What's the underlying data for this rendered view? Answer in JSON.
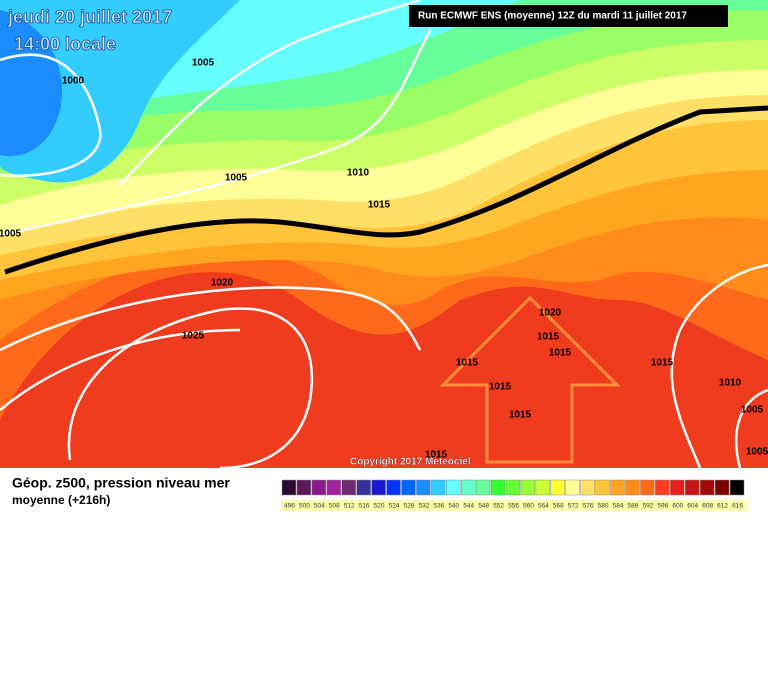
{
  "header": {
    "date": "jeudi 20 juillet 2017",
    "time": "14:00 locale",
    "run": "Run ECMWF ENS (moyenne) 12Z du mardi 11 juillet 2017"
  },
  "copyright": "Copyright 2017 Meteociel",
  "isobars": [
    1005,
    1000,
    1005,
    1010,
    1015,
    1005,
    1020,
    1025,
    1020,
    1015,
    1015,
    1015,
    1015,
    1015,
    1015,
    1010,
    1005,
    1005,
    1015
  ],
  "legend": {
    "title": "Géop. z500, pression niveau mer",
    "subtitle": "moyenne  (+216h)",
    "scale": [
      {
        "label": 496,
        "color": "#2d0a2d"
      },
      {
        "label": 500,
        "color": "#5a1a5a"
      },
      {
        "label": 504,
        "color": "#8c1a8c"
      },
      {
        "label": 508,
        "color": "#a020a0"
      },
      {
        "label": 512,
        "color": "#6e2a6e"
      },
      {
        "label": 516,
        "color": "#333399"
      },
      {
        "label": 520,
        "color": "#1a1acc"
      },
      {
        "label": 524,
        "color": "#0033ff"
      },
      {
        "label": 528,
        "color": "#0066ff"
      },
      {
        "label": 532,
        "color": "#1a8cff"
      },
      {
        "label": 536,
        "color": "#33ccff"
      },
      {
        "label": 540,
        "color": "#66ffff"
      },
      {
        "label": 544,
        "color": "#66ffcc"
      },
      {
        "label": 548,
        "color": "#66ff99"
      },
      {
        "label": 552,
        "color": "#33ff33"
      },
      {
        "label": 556,
        "color": "#66ff33"
      },
      {
        "label": 560,
        "color": "#99ff33"
      },
      {
        "label": 564,
        "color": "#ccff33"
      },
      {
        "label": 568,
        "color": "#ffff33"
      },
      {
        "label": 572,
        "color": "#ffff99"
      },
      {
        "label": 576,
        "color": "#ffe066"
      },
      {
        "label": 580,
        "color": "#ffc43a"
      },
      {
        "label": 584,
        "color": "#ffa51f"
      },
      {
        "label": 588,
        "color": "#ff8c1a"
      },
      {
        "label": 592,
        "color": "#ff6a1a"
      },
      {
        "label": 596,
        "color": "#ff3c1e"
      },
      {
        "label": 600,
        "color": "#e61e1e"
      },
      {
        "label": 604,
        "color": "#c81414"
      },
      {
        "label": 608,
        "color": "#a00a0a"
      },
      {
        "label": 612,
        "color": "#780000"
      },
      {
        "label": 616,
        "color": "#000000"
      }
    ]
  }
}
